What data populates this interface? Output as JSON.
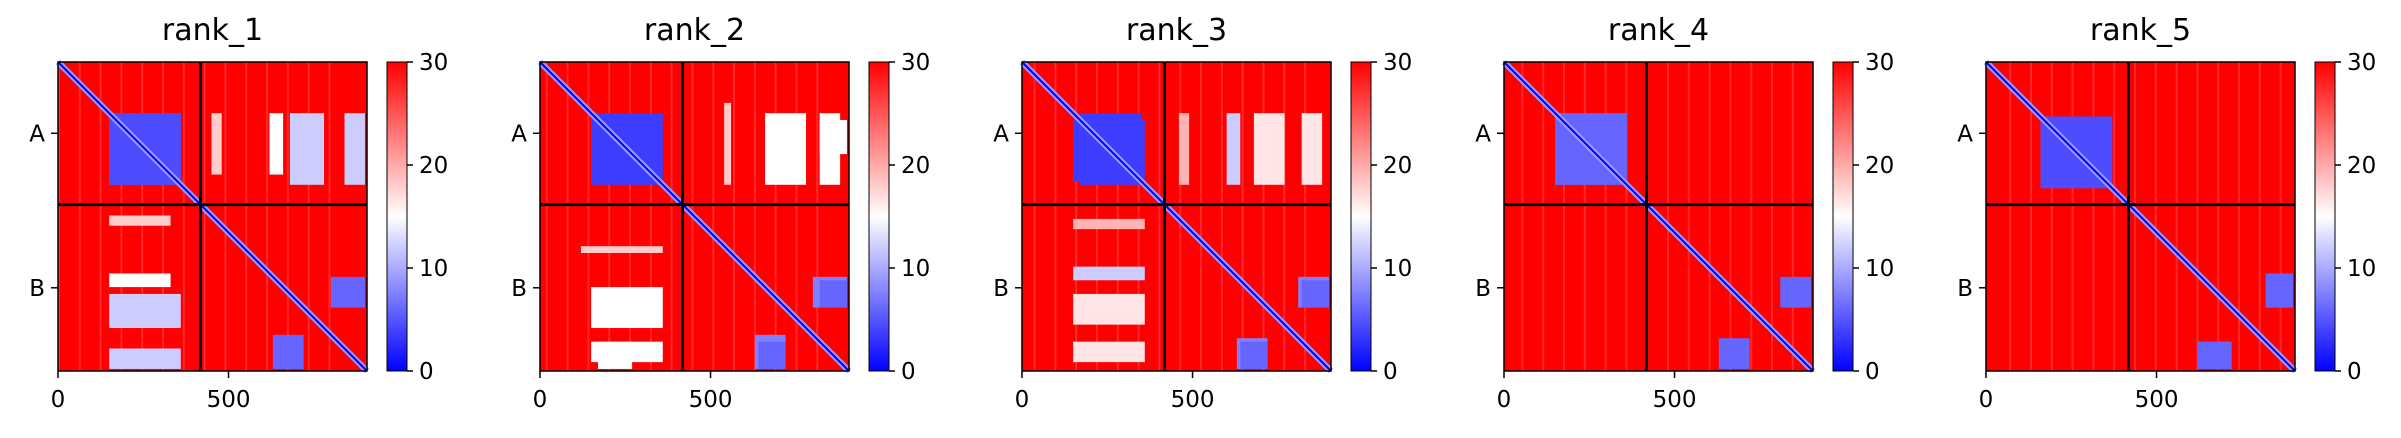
{
  "colormap": {
    "name": "bwr",
    "low": "#0000ff",
    "mid": "#ffffff",
    "high": "#ff0000"
  },
  "divider_color": "#000000",
  "chart_data": [
    {
      "type": "heatmap",
      "title": "rank_1",
      "x_ticks": [
        {
          "value": 0,
          "label": "0"
        },
        {
          "value": 500,
          "label": "500"
        }
      ],
      "x_range": [
        0,
        906
      ],
      "chain_labels": [
        "A",
        "B"
      ],
      "chain_boundary": 418,
      "colorbar": {
        "min": 0,
        "max": 30,
        "ticks": [
          "0",
          "10",
          "20",
          "30"
        ]
      },
      "blocks": [
        {
          "x": [
            150,
            360
          ],
          "y": [
            150,
            360
          ],
          "level": 0.15
        },
        {
          "x": [
            450,
            480
          ],
          "y": [
            150,
            330
          ],
          "level": 0.6
        },
        {
          "x": [
            620,
            660
          ],
          "y": [
            150,
            330
          ],
          "level": 0.5
        },
        {
          "x": [
            850,
            890
          ],
          "y": [
            170,
            230
          ],
          "level": 0.55
        },
        {
          "x": [
            150,
            360
          ],
          "y": [
            680,
            780
          ],
          "level": 0.4
        },
        {
          "x": [
            150,
            360
          ],
          "y": [
            840,
            900
          ],
          "level": 0.4
        },
        {
          "x": [
            630,
            720
          ],
          "y": [
            800,
            900
          ],
          "level": 0.2
        },
        {
          "x": [
            820,
            900
          ],
          "y": [
            640,
            720
          ],
          "level": 0.2
        }
      ]
    },
    {
      "type": "heatmap",
      "title": "rank_2",
      "x_ticks": [
        {
          "value": 0,
          "label": "0"
        },
        {
          "value": 500,
          "label": "500"
        }
      ],
      "x_range": [
        0,
        906
      ],
      "chain_labels": [
        "A",
        "B"
      ],
      "chain_boundary": 418,
      "colorbar": {
        "min": 0,
        "max": 30,
        "ticks": [
          "0",
          "10",
          "20",
          "30"
        ]
      },
      "blocks": [
        {
          "x": [
            150,
            350
          ],
          "y": [
            150,
            360
          ],
          "level": 0.12
        },
        {
          "x": [
            540,
            560
          ],
          "y": [
            120,
            360
          ],
          "level": 0.6
        },
        {
          "x": [
            820,
            900
          ],
          "y": [
            170,
            270
          ],
          "level": 0.5
        },
        {
          "x": [
            150,
            360
          ],
          "y": [
            660,
            780
          ],
          "level": 0.5
        },
        {
          "x": [
            150,
            360
          ],
          "y": [
            820,
            880
          ],
          "level": 0.5
        },
        {
          "x": [
            630,
            720
          ],
          "y": [
            800,
            900
          ],
          "level": 0.25
        },
        {
          "x": [
            820,
            900
          ],
          "y": [
            640,
            720
          ],
          "level": 0.2
        }
      ]
    },
    {
      "type": "heatmap",
      "title": "rank_3",
      "x_ticks": [
        {
          "value": 0,
          "label": "0"
        },
        {
          "value": 500,
          "label": "500"
        }
      ],
      "x_range": [
        0,
        906
      ],
      "chain_labels": [
        "A",
        "B"
      ],
      "chain_boundary": 418,
      "colorbar": {
        "min": 0,
        "max": 30,
        "ticks": [
          "0",
          "10",
          "20",
          "30"
        ]
      },
      "blocks": [
        {
          "x": [
            170,
            350
          ],
          "y": [
            150,
            360
          ],
          "level": 0.12
        },
        {
          "x": [
            460,
            490
          ],
          "y": [
            150,
            360
          ],
          "level": 0.65
        },
        {
          "x": [
            600,
            640
          ],
          "y": [
            150,
            360
          ],
          "level": 0.4
        },
        {
          "x": [
            150,
            360
          ],
          "y": [
            680,
            770
          ],
          "level": 0.55
        },
        {
          "x": [
            150,
            360
          ],
          "y": [
            820,
            880
          ],
          "level": 0.55
        },
        {
          "x": [
            630,
            720
          ],
          "y": [
            810,
            900
          ],
          "level": 0.25
        },
        {
          "x": [
            820,
            900
          ],
          "y": [
            640,
            720
          ],
          "level": 0.2
        }
      ]
    },
    {
      "type": "heatmap",
      "title": "rank_4",
      "x_ticks": [
        {
          "value": 0,
          "label": "0"
        },
        {
          "value": 500,
          "label": "500"
        }
      ],
      "x_range": [
        0,
        906
      ],
      "chain_labels": [
        "A",
        "B"
      ],
      "chain_boundary": 418,
      "colorbar": {
        "min": 0,
        "max": 30,
        "ticks": [
          "0",
          "10",
          "20",
          "30"
        ]
      },
      "blocks": [
        {
          "x": [
            150,
            360
          ],
          "y": [
            150,
            360
          ],
          "level": 0.2
        },
        {
          "x": [
            630,
            720
          ],
          "y": [
            810,
            900
          ],
          "level": 0.2
        },
        {
          "x": [
            820,
            900
          ],
          "y": [
            640,
            720
          ],
          "level": 0.2
        }
      ]
    },
    {
      "type": "heatmap",
      "title": "rank_5",
      "x_ticks": [
        {
          "value": 0,
          "label": "0"
        },
        {
          "value": 500,
          "label": "500"
        }
      ],
      "x_range": [
        0,
        906
      ],
      "chain_labels": [
        "A",
        "B"
      ],
      "chain_boundary": 418,
      "colorbar": {
        "min": 0,
        "max": 30,
        "ticks": [
          "0",
          "10",
          "20",
          "30"
        ]
      },
      "blocks": [
        {
          "x": [
            160,
            370
          ],
          "y": [
            160,
            370
          ],
          "level": 0.15
        },
        {
          "x": [
            620,
            720
          ],
          "y": [
            820,
            900
          ],
          "level": 0.2
        },
        {
          "x": [
            820,
            900
          ],
          "y": [
            640,
            720
          ],
          "level": 0.2
        }
      ]
    }
  ]
}
